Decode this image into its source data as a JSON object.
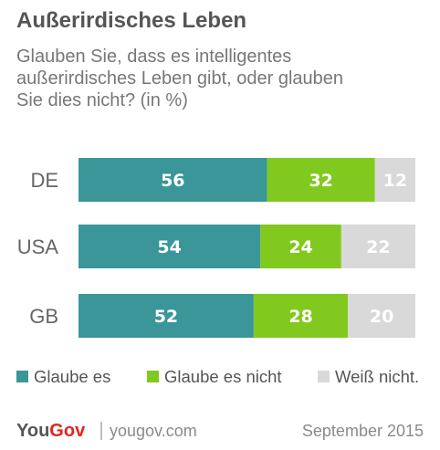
{
  "chart_data": {
    "type": "bar",
    "orientation": "horizontal",
    "stacked": true,
    "title": "Außerirdisches Leben",
    "subtitle": [
      "Glauben Sie, dass es intelligentes",
      "außerirdisches Leben gibt, oder glauben",
      "Sie dies nicht? (in %)"
    ],
    "categories": [
      "DE",
      "USA",
      "GB"
    ],
    "series": [
      {
        "name": "Glaube es",
        "values": [
          56,
          54,
          52
        ],
        "color": "#3a9698",
        "label_color": "#ffffff"
      },
      {
        "name": "Glaube es nicht",
        "values": [
          32,
          24,
          28
        ],
        "color": "#81c91e",
        "label_color": "#ffffff"
      },
      {
        "name": "Weiß nicht.",
        "values": [
          12,
          22,
          20
        ],
        "color": "#d9d9d9",
        "label_color": "#ffffff"
      }
    ],
    "xlim": [
      0,
      100
    ],
    "legend_position": "bottom",
    "grid": false
  },
  "footer": {
    "logo": "YouGov",
    "site": "yougov.com",
    "date": "September 2015"
  },
  "colors": {
    "title": "#555555",
    "subtitle": "#777777",
    "logo_red": "#e0261f",
    "separator": "#aaaaaa"
  }
}
